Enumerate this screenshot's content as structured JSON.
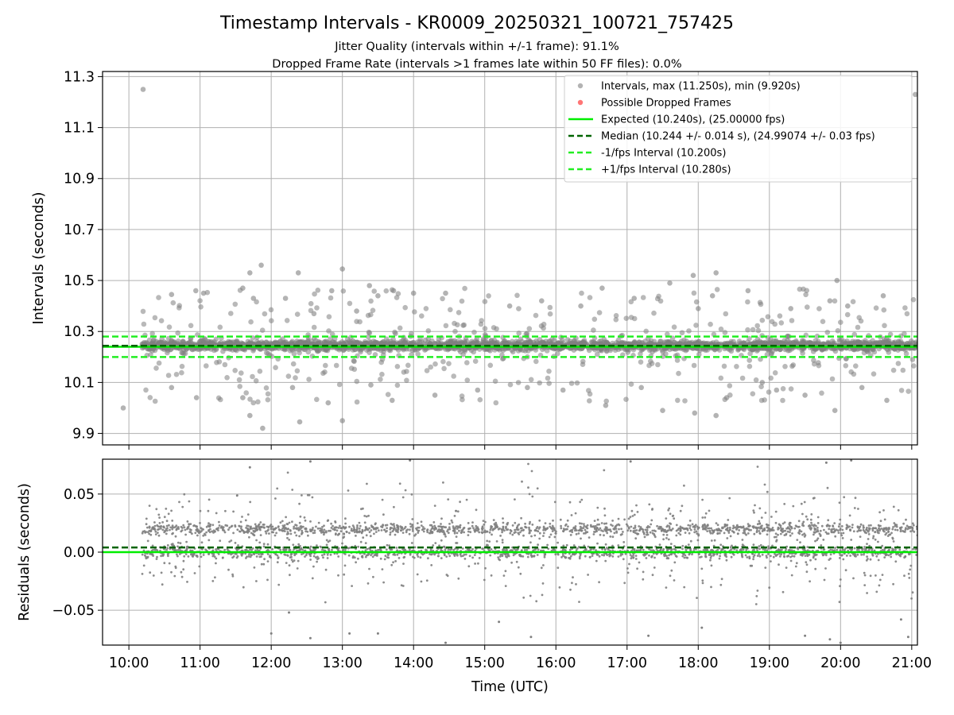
{
  "figure": {
    "title": "Timestamp Intervals - KR0009_20250321_100721_757425",
    "subtitle_1": "Jitter Quality (intervals within +/-1 frame): 91.1%",
    "subtitle_2": "Dropped Frame Rate (intervals >1 frames late within 50 FF files): 0.0%"
  },
  "colors": {
    "scatter": "#808080",
    "dropped": "#ff6666",
    "expected": "#00ee00",
    "median": "#006400",
    "bounds": "#22ee22",
    "grid": "#b0b0b0"
  },
  "chart_data": [
    {
      "type": "scatter",
      "panel": "intervals",
      "ylabel": "Intervals (seconds)",
      "xlim_hours": [
        9.63,
        21.08
      ],
      "ylim": [
        9.855,
        11.32
      ],
      "yticks": [
        "9.9",
        "10.1",
        "10.3",
        "10.5",
        "10.7",
        "10.9",
        "11.1",
        "11.3"
      ],
      "ytick_values": [
        9.9,
        10.1,
        10.3,
        10.5,
        10.7,
        10.9,
        11.1,
        11.3
      ],
      "grid": true,
      "legend_position": "upper-right",
      "series": [
        {
          "name": "Intervals, max (11.250s), min (9.920s)",
          "kind": "scatter",
          "color": "#808080",
          "max": 11.25,
          "min": 9.92,
          "dense_band": [
            10.22,
            10.27
          ]
        },
        {
          "name": "Possible Dropped Frames",
          "kind": "scatter",
          "color": "#ff6666",
          "count": 0
        },
        {
          "name": "Expected (10.240s), (25.00000 fps)",
          "kind": "hline",
          "y": 10.24,
          "style": "solid"
        },
        {
          "name": "Median (10.244 +/- 0.014 s), (24.99074 +/- 0.03 fps)",
          "kind": "hline",
          "y": 10.244,
          "style": "dashed"
        },
        {
          "name": "-1/fps Interval (10.200s)",
          "kind": "hline",
          "y": 10.2,
          "style": "dashed"
        },
        {
          "name": "+1/fps Interval (10.280s)",
          "kind": "hline",
          "y": 10.28,
          "style": "dashed"
        }
      ],
      "outliers": [
        [
          10.2,
          11.25
        ],
        [
          21.05,
          11.23
        ],
        [
          11.86,
          10.56
        ],
        [
          13.0,
          10.545
        ],
        [
          11.7,
          10.53
        ],
        [
          12.38,
          10.53
        ],
        [
          18.25,
          10.53
        ],
        [
          17.6,
          10.49
        ],
        [
          18.2,
          10.44
        ],
        [
          17.93,
          10.52
        ],
        [
          19.95,
          10.5
        ],
        [
          10.94,
          10.46
        ],
        [
          11.6,
          10.47
        ],
        [
          13.38,
          10.48
        ],
        [
          13.72,
          10.46
        ],
        [
          16.65,
          10.47
        ],
        [
          12.85,
          10.46
        ],
        [
          14.45,
          10.45
        ],
        [
          10.6,
          10.445
        ],
        [
          11.05,
          10.45
        ],
        [
          15.35,
          10.4
        ],
        [
          16.35,
          10.4
        ],
        [
          17.1,
          10.43
        ],
        [
          18.7,
          10.46
        ],
        [
          19.85,
          10.42
        ],
        [
          20.6,
          10.44
        ],
        [
          11.75,
          10.43
        ],
        [
          12.2,
          10.43
        ],
        [
          13.5,
          10.44
        ],
        [
          14.0,
          10.45
        ],
        [
          15.8,
          10.42
        ],
        [
          20.1,
          10.4
        ],
        [
          12.6,
          10.37
        ],
        [
          13.2,
          10.38
        ],
        [
          18.0,
          10.39
        ],
        [
          19.3,
          10.39
        ],
        [
          9.92,
          10.0
        ],
        [
          11.7,
          9.97
        ],
        [
          11.88,
          9.92
        ],
        [
          12.4,
          9.945
        ],
        [
          13.0,
          9.95
        ],
        [
          12.8,
          10.02
        ],
        [
          13.7,
          10.03
        ],
        [
          14.3,
          10.05
        ],
        [
          16.1,
          10.07
        ],
        [
          16.7,
          10.01
        ],
        [
          17.5,
          9.99
        ],
        [
          17.95,
          9.98
        ],
        [
          18.25,
          9.97
        ],
        [
          19.92,
          9.99
        ],
        [
          20.65,
          10.03
        ],
        [
          10.95,
          10.04
        ],
        [
          11.6,
          10.04
        ],
        [
          14.9,
          10.07
        ],
        [
          17.2,
          10.08
        ],
        [
          18.4,
          10.04
        ],
        [
          19.5,
          10.05
        ],
        [
          10.6,
          10.08
        ],
        [
          13.4,
          10.09
        ],
        [
          15.6,
          10.08
        ],
        [
          18.9,
          10.1
        ],
        [
          19.1,
          10.07
        ],
        [
          20.3,
          10.08
        ],
        [
          12.3,
          10.08
        ]
      ],
      "x_ticks": [
        "10:00",
        "11:00",
        "12:00",
        "13:00",
        "14:00",
        "15:00",
        "16:00",
        "17:00",
        "18:00",
        "19:00",
        "20:00",
        "21:00"
      ]
    },
    {
      "type": "scatter",
      "panel": "residuals",
      "xlabel": "Time (UTC)",
      "ylabel": "Residuals (seconds)",
      "xlim_hours": [
        9.63,
        21.08
      ],
      "ylim": [
        -0.08,
        0.08
      ],
      "yticks": [
        "−0.05",
        "0.00",
        "0.05"
      ],
      "ytick_values": [
        -0.05,
        0.0,
        0.05
      ],
      "xticks": [
        "10:00",
        "11:00",
        "12:00",
        "13:00",
        "14:00",
        "15:00",
        "16:00",
        "17:00",
        "18:00",
        "19:00",
        "20:00",
        "21:00"
      ],
      "xtick_values": [
        10,
        11,
        12,
        13,
        14,
        15,
        16,
        17,
        18,
        19,
        20,
        21
      ],
      "grid": true,
      "series": [
        {
          "kind": "scatter",
          "color": "#808080",
          "clusters": [
            0.0,
            0.02
          ],
          "spread": 0.03
        },
        {
          "kind": "hline",
          "y": 0.0,
          "style": "solid",
          "label": "expected"
        },
        {
          "kind": "hline",
          "y": 0.004,
          "style": "dashed",
          "label": "median"
        }
      ],
      "outliers": [
        [
          11.7,
          0.073
        ],
        [
          12.55,
          0.078
        ],
        [
          13.95,
          0.079
        ],
        [
          17.05,
          0.078
        ],
        [
          19.8,
          0.077
        ],
        [
          20.15,
          0.079
        ],
        [
          12.0,
          -0.07
        ],
        [
          12.25,
          -0.052
        ],
        [
          12.55,
          -0.074
        ],
        [
          13.1,
          -0.07
        ],
        [
          13.5,
          -0.07
        ],
        [
          14.45,
          -0.078
        ],
        [
          15.2,
          -0.06
        ],
        [
          15.65,
          -0.073
        ],
        [
          17.3,
          -0.072
        ],
        [
          18.05,
          -0.065
        ],
        [
          19.5,
          -0.072
        ],
        [
          19.85,
          -0.075
        ],
        [
          20.0,
          -0.078
        ],
        [
          20.85,
          -0.058
        ],
        [
          20.95,
          -0.073
        ]
      ]
    }
  ]
}
